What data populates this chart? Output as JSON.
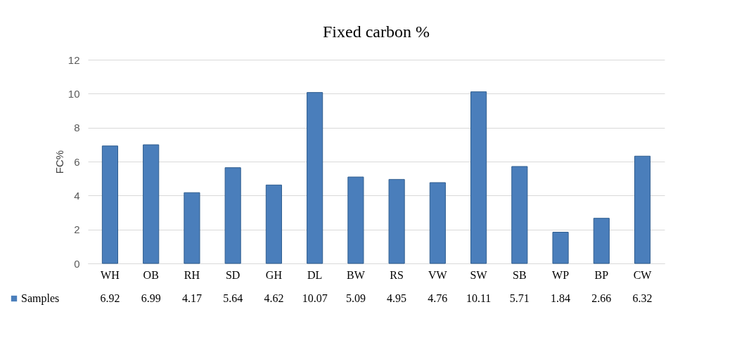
{
  "chart_data": {
    "type": "bar",
    "title": "Fixed carbon %",
    "ylabel": "FC%",
    "categories": [
      "WH",
      "OB",
      "RH",
      "SD",
      "GH",
      "DL",
      "BW",
      "RS",
      "VW",
      "SW",
      "SB",
      "WP",
      "BP",
      "CW"
    ],
    "series": [
      {
        "name": "Samples",
        "color": "#4a7ebb",
        "values": [
          6.92,
          6.99,
          4.17,
          5.64,
          4.62,
          10.07,
          5.09,
          4.95,
          4.76,
          10.11,
          5.71,
          1.84,
          2.66,
          6.32
        ]
      }
    ],
    "ylim": [
      0,
      12
    ],
    "yticks": [
      0,
      2,
      4,
      6,
      8,
      10,
      12
    ],
    "grid": "y",
    "legend": "bottom left",
    "data_labels": true
  }
}
